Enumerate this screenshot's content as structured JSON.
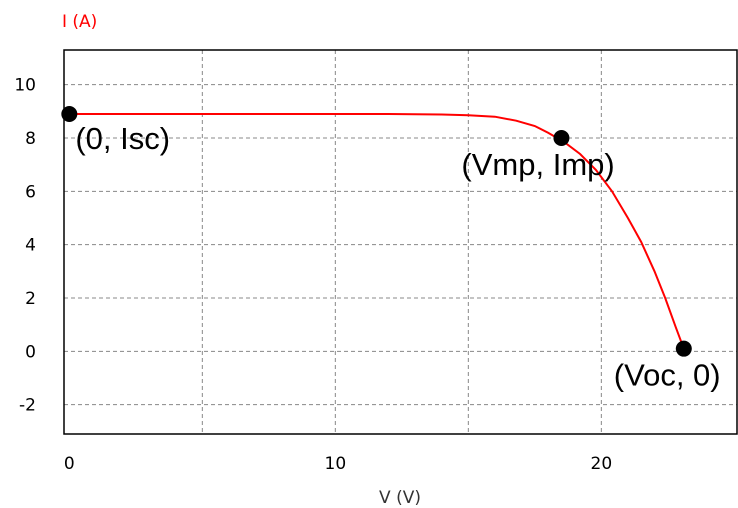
{
  "chart_data": {
    "type": "line",
    "title": "",
    "xlabel": "V (V)",
    "ylabel": "I (A)",
    "xlim": [
      -0.2,
      25.1
    ],
    "ylim": [
      -3.1,
      11.3
    ],
    "xticks": [
      "0",
      "10",
      "20"
    ],
    "yticks": [
      "10",
      "8",
      "6",
      "4",
      "2",
      "0",
      "-2"
    ],
    "grid": true,
    "colors": {
      "curve": "#ff0000",
      "ylabel": "#ff0000",
      "xlabel": "#333333",
      "grid": "#888888",
      "frame": "#000000"
    },
    "series": [
      {
        "x": [
          0,
          2,
          4,
          6,
          8,
          10,
          12,
          14,
          15,
          16,
          16.8,
          17.5,
          18,
          18.6,
          19.2,
          19.8,
          20.4,
          21,
          21.5,
          22,
          22.4,
          22.8,
          23.1
        ],
        "y": [
          8.9,
          8.9,
          8.9,
          8.9,
          8.9,
          8.9,
          8.9,
          8.88,
          8.85,
          8.8,
          8.65,
          8.45,
          8.2,
          7.85,
          7.4,
          6.8,
          6.0,
          5.0,
          4.1,
          3.0,
          2.0,
          0.9,
          0.1
        ]
      }
    ],
    "points": [
      {
        "label": "(0, Isc)",
        "x": 0,
        "y": 8.9
      },
      {
        "label": "(Vmp, Imp)",
        "x": 18.5,
        "y": 8.0
      },
      {
        "label": "(Voc, 0)",
        "x": 23.1,
        "y": 0.1
      }
    ]
  }
}
